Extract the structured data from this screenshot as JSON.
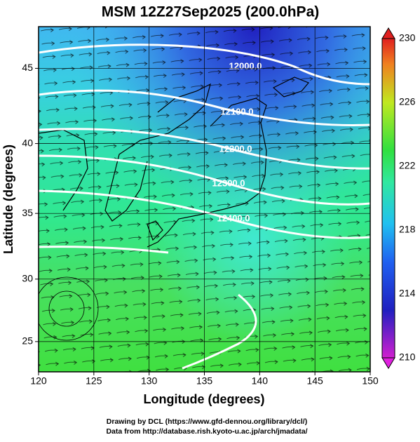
{
  "title": "MSM 12Z27Sep2025 (200.0hPa)",
  "x_label": "Longitude (degrees)",
  "y_label": "Latitude  (degrees)",
  "xlim": [
    120,
    150
  ],
  "xticks": [
    120,
    125,
    130,
    135,
    140,
    145,
    150
  ],
  "ylim": [
    22.5,
    47.6
  ],
  "yticks": [
    25,
    30,
    35,
    40,
    45
  ],
  "colorbar": {
    "range": [
      210,
      230
    ],
    "ticks": [
      210,
      214,
      218,
      222,
      226,
      230
    ]
  },
  "contour_labels": [
    "12000.0",
    "12100.0",
    "12200.0",
    "12300.0",
    "12400.0"
  ],
  "credits": [
    "Drawing by DCL (https://www.gfd-dennou.org/library/dcl/)",
    "Data from http://database.rish.kyoto-u.ac.jp/arch/jmadata/"
  ]
}
